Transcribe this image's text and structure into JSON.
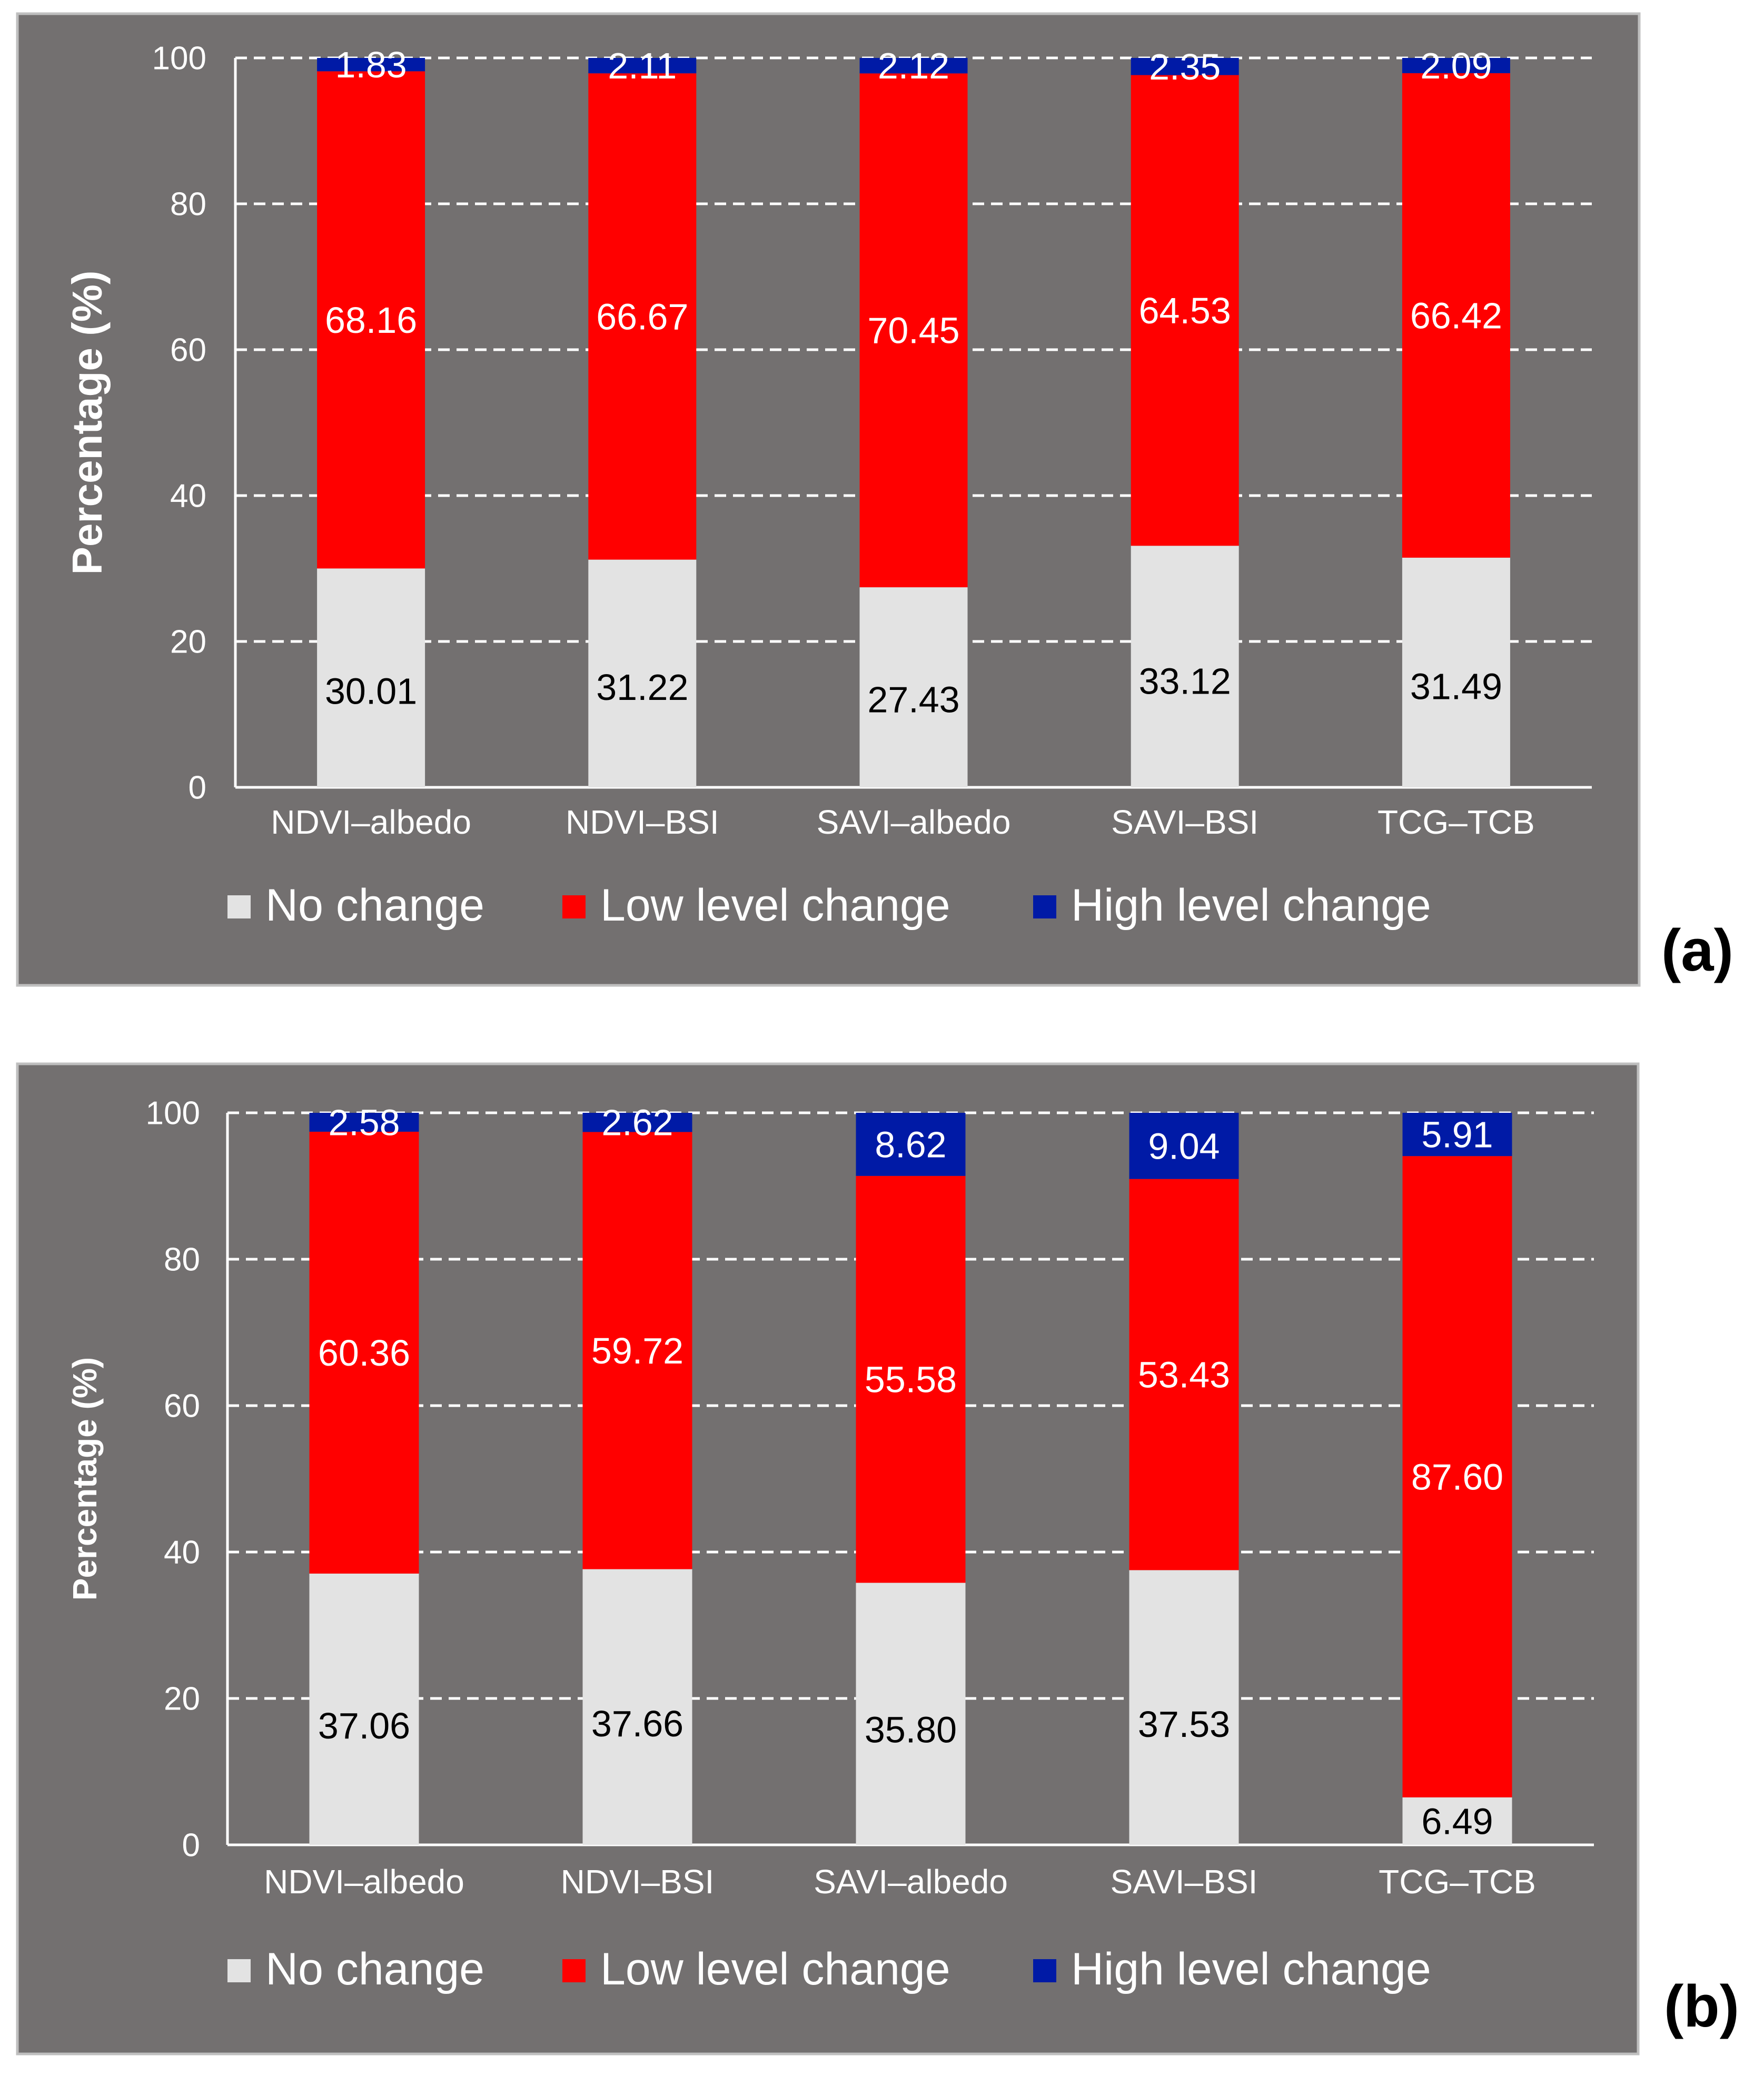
{
  "colors": {
    "panel_bg": "#737070",
    "panel_border": "#bfbfbf",
    "grid": "#ffffff",
    "axis": "#ffffff",
    "no_change": "#e3e3e3",
    "low_change": "#ff0000",
    "high_change": "#001aa6",
    "label_dark": "#000000",
    "label_light": "#ffffff"
  },
  "chart_data": [
    {
      "type": "bar",
      "stacked": true,
      "panel_label": "(a)",
      "ylabel": "Percentage (%)",
      "ylim": [
        0,
        100
      ],
      "yticks": [
        "0",
        "20",
        "40",
        "60",
        "80",
        "100"
      ],
      "grid": true,
      "legend": "bottom",
      "categories": [
        "NDVI–albedo",
        "NDVI–BSI",
        "SAVI–albedo",
        "SAVI–BSI",
        "TCG–TCB"
      ],
      "series": [
        {
          "name": "No change",
          "values": [
            30.01,
            31.22,
            27.43,
            33.12,
            31.49
          ],
          "labels": [
            "30.01",
            "31.22",
            "27.43",
            "33.12",
            "31.49"
          ]
        },
        {
          "name": "Low level change",
          "values": [
            68.16,
            66.67,
            70.45,
            64.53,
            66.42
          ],
          "labels": [
            "68.16",
            "66.67",
            "70.45",
            "64.53",
            "66.42"
          ]
        },
        {
          "name": "High level change",
          "values": [
            1.83,
            2.11,
            2.12,
            2.35,
            2.09
          ],
          "labels": [
            "1.83",
            "2.11",
            "2.12",
            "2.35",
            "2.09"
          ]
        }
      ]
    },
    {
      "type": "bar",
      "stacked": true,
      "panel_label": "(b)",
      "ylabel": "Percentage (%)",
      "ylim": [
        0,
        100
      ],
      "yticks": [
        "0",
        "20",
        "40",
        "60",
        "80",
        "100"
      ],
      "grid": true,
      "legend": "bottom",
      "categories": [
        "NDVI–albedo",
        "NDVI–BSI",
        "SAVI–albedo",
        "SAVI–BSI",
        "TCG–TCB"
      ],
      "series": [
        {
          "name": "No change",
          "values": [
            37.06,
            37.66,
            35.8,
            37.53,
            6.49
          ],
          "labels": [
            "37.06",
            "37.66",
            "35.80",
            "37.53",
            "6.49"
          ]
        },
        {
          "name": "Low level change",
          "values": [
            60.36,
            59.72,
            55.58,
            53.43,
            87.6
          ],
          "labels": [
            "60.36",
            "59.72",
            "55.58",
            "53.43",
            "87.60"
          ]
        },
        {
          "name": "High level change",
          "values": [
            2.58,
            2.62,
            8.62,
            9.04,
            5.91
          ],
          "labels": [
            "2.58",
            "2.62",
            "8.62",
            "9.04",
            "5.91"
          ]
        }
      ]
    }
  ]
}
